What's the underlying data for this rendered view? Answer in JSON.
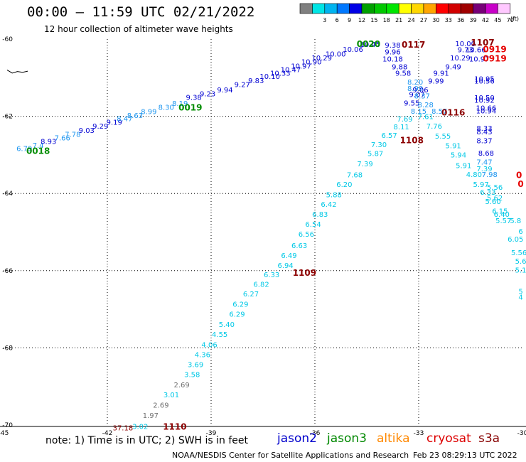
{
  "header": {
    "title": "00:00 – 11:59 UTC 02/21/2022",
    "subtitle": "12 hour collection of altimeter wave heights"
  },
  "color_scale": {
    "units": "(ft)",
    "bins": [
      {
        "label": "",
        "color": "#808080"
      },
      {
        "label": "3",
        "color": "#00e5e5"
      },
      {
        "label": "6",
        "color": "#00b4f0"
      },
      {
        "label": "9",
        "color": "#0078ff"
      },
      {
        "label": "12",
        "color": "#0000e6"
      },
      {
        "label": "15",
        "color": "#00a000"
      },
      {
        "label": "18",
        "color": "#00c800"
      },
      {
        "label": "21",
        "color": "#00e600"
      },
      {
        "label": "24",
        "color": "#ffff00"
      },
      {
        "label": "27",
        "color": "#ffd700"
      },
      {
        "label": "30",
        "color": "#ffa500"
      },
      {
        "label": "33",
        "color": "#ff0000"
      },
      {
        "label": "36",
        "color": "#d20000"
      },
      {
        "label": "39",
        "color": "#a00000"
      },
      {
        "label": "42",
        "color": "#780078"
      },
      {
        "label": "45",
        "color": "#c800c8"
      },
      {
        "label": "70",
        "color": "#ffc8ff"
      }
    ]
  },
  "footer": {
    "note": "note:  1) Time is in UTC;  2) SWH is in feet",
    "credit": "NOAA/NESDIS Center for Satellite Applications and Research",
    "run_date": "Feb 23 08:29:13 UTC 2022",
    "satellites": [
      {
        "name": "jason2",
        "color": "#0000cc"
      },
      {
        "name": "jason3",
        "color": "#008800"
      },
      {
        "name": "altika",
        "color": "#ff8800"
      },
      {
        "name": "cryosat",
        "color": "#dd0000"
      },
      {
        "name": "s3a",
        "color": "#880000"
      }
    ]
  },
  "chart_data": {
    "type": "scatter",
    "title": "00:00 – 11:59 UTC 02/21/2022",
    "subtitle": "12 hour collection of altimeter wave heights",
    "xlim": [
      -45,
      -30
    ],
    "ylim": [
      -70,
      -60
    ],
    "x_ticks": [
      -45,
      -42,
      -39,
      -36,
      -33,
      -30
    ],
    "y_ticks": [
      -60,
      -62,
      -64,
      -66,
      -68,
      -70
    ],
    "x_tick_labels": [
      "-45",
      "-42",
      "-39",
      "-36",
      "-33",
      "-30"
    ],
    "y_tick_labels": [
      "-60",
      "-62",
      "-64",
      "-66",
      "-68",
      "-70"
    ],
    "grid": true,
    "colors": {
      "gray": "#707070",
      "cyan": "#00c8e6",
      "lightblue": "#1e96f0",
      "blue": "#0000d2",
      "green": "#008c00",
      "darkred": "#8c0000",
      "red": "#e60000"
    },
    "coast": [
      [
        -44.9,
        -60.8
      ],
      [
        -44.75,
        -60.88
      ],
      [
        -44.6,
        -60.84
      ],
      [
        -44.45,
        -60.86
      ],
      [
        -44.3,
        -60.83
      ]
    ],
    "points": [
      {
        "x": -44.4,
        "y": -62.9,
        "label": "6.79",
        "color": "lightblue"
      },
      {
        "x": -44.0,
        "y": -62.82,
        "label": "7.4",
        "color": "lightblue"
      },
      {
        "x": -43.7,
        "y": -62.72,
        "label": "8.93",
        "color": "blue"
      },
      {
        "x": -43.3,
        "y": -62.62,
        "label": "7.66",
        "color": "lightblue"
      },
      {
        "x": -43.0,
        "y": -62.53,
        "label": "7.78",
        "color": "lightblue"
      },
      {
        "x": -42.6,
        "y": -62.43,
        "label": "9.03",
        "color": "blue"
      },
      {
        "x": -42.2,
        "y": -62.32,
        "label": "9.29",
        "color": "blue"
      },
      {
        "x": -41.8,
        "y": -62.22,
        "label": "9.19",
        "color": "blue"
      },
      {
        "x": -41.5,
        "y": -62.13,
        "label": "8.47",
        "color": "lightblue"
      },
      {
        "x": -41.2,
        "y": -62.04,
        "label": "8.63",
        "color": "lightblue"
      },
      {
        "x": -40.8,
        "y": -61.94,
        "label": "8.99",
        "color": "lightblue"
      },
      {
        "x": -40.3,
        "y": -61.83,
        "label": "8.30",
        "color": "lightblue"
      },
      {
        "x": -39.9,
        "y": -61.73,
        "label": "8.19",
        "color": "lightblue"
      },
      {
        "x": -39.5,
        "y": -61.57,
        "label": "9.38",
        "color": "blue"
      },
      {
        "x": -39.1,
        "y": -61.48,
        "label": "9.23",
        "color": "blue"
      },
      {
        "x": -38.6,
        "y": -61.38,
        "label": "9.94",
        "color": "blue"
      },
      {
        "x": -38.1,
        "y": -61.24,
        "label": "9.27",
        "color": "blue"
      },
      {
        "x": -37.7,
        "y": -61.14,
        "label": "9.83",
        "color": "blue"
      },
      {
        "x": -37.3,
        "y": -61.03,
        "label": "10.10",
        "color": "blue"
      },
      {
        "x": -37.0,
        "y": -60.95,
        "label": "10.33",
        "color": "blue"
      },
      {
        "x": -36.7,
        "y": -60.86,
        "label": "10.47",
        "color": "blue"
      },
      {
        "x": -36.4,
        "y": -60.76,
        "label": "10.97",
        "color": "blue"
      },
      {
        "x": -36.1,
        "y": -60.65,
        "label": "10.90",
        "color": "blue"
      },
      {
        "x": -35.8,
        "y": -60.55,
        "label": "10.29",
        "color": "blue"
      },
      {
        "x": -35.4,
        "y": -60.45,
        "label": "10.00",
        "color": "blue"
      },
      {
        "x": -34.9,
        "y": -60.33,
        "label": "10.06",
        "color": "blue"
      },
      {
        "x": -34.4,
        "y": -60.2,
        "label": "10.45",
        "color": "blue"
      },
      {
        "x": -33.75,
        "y": -60.22,
        "label": "9.38",
        "color": "blue"
      },
      {
        "x": -33.75,
        "y": -60.4,
        "label": "9.96",
        "color": "blue"
      },
      {
        "x": -33.75,
        "y": -60.58,
        "label": "10.18",
        "color": "blue"
      },
      {
        "x": -33.55,
        "y": -60.78,
        "label": "9.88",
        "color": "blue"
      },
      {
        "x": -33.45,
        "y": -60.95,
        "label": "9.58",
        "color": "blue"
      },
      {
        "x": -33.1,
        "y": -61.18,
        "label": "8.20",
        "color": "lightblue"
      },
      {
        "x": -33.1,
        "y": -61.34,
        "label": "8.99",
        "color": "lightblue"
      },
      {
        "x": -32.95,
        "y": -61.38,
        "label": "9.06",
        "color": "blue"
      },
      {
        "x": -33.05,
        "y": -61.5,
        "label": "9.07",
        "color": "blue"
      },
      {
        "x": -32.9,
        "y": -61.54,
        "label": "8.37",
        "color": "lightblue"
      },
      {
        "x": -33.2,
        "y": -61.72,
        "label": "9.55",
        "color": "blue"
      },
      {
        "x": -32.8,
        "y": -61.77,
        "label": "8.28",
        "color": "lightblue"
      },
      {
        "x": -33.0,
        "y": -61.93,
        "label": "8.15",
        "color": "lightblue"
      },
      {
        "x": -32.4,
        "y": -61.93,
        "label": "8.57",
        "color": "lightblue"
      },
      {
        "x": -32.5,
        "y": -61.15,
        "label": "9.99",
        "color": "blue"
      },
      {
        "x": -32.35,
        "y": -60.95,
        "label": "9.91",
        "color": "blue"
      },
      {
        "x": -32.0,
        "y": -60.78,
        "label": "9.49",
        "color": "blue"
      },
      {
        "x": -31.8,
        "y": -60.55,
        "label": "10.29",
        "color": "blue"
      },
      {
        "x": -31.65,
        "y": -60.34,
        "label": "9.73",
        "color": "blue"
      },
      {
        "x": -31.65,
        "y": -60.18,
        "label": "10.00",
        "color": "blue"
      },
      {
        "x": -31.35,
        "y": -60.34,
        "label": "10.66",
        "color": "blue"
      },
      {
        "x": -31.25,
        "y": -60.58,
        "label": "10.97",
        "color": "blue"
      },
      {
        "x": -31.1,
        "y": -61.1,
        "label": "10.95",
        "color": "blue"
      },
      {
        "x": -31.1,
        "y": -61.15,
        "label": "10.56",
        "color": "blue"
      },
      {
        "x": -31.1,
        "y": -61.58,
        "label": "10.50",
        "color": "blue"
      },
      {
        "x": -31.1,
        "y": -61.65,
        "label": "10.92",
        "color": "blue"
      },
      {
        "x": -31.05,
        "y": -61.85,
        "label": "10.66",
        "color": "blue"
      },
      {
        "x": -31.05,
        "y": -61.92,
        "label": "10.94",
        "color": "blue"
      },
      {
        "x": -33.4,
        "y": -62.14,
        "label": "7.69",
        "color": "cyan"
      },
      {
        "x": -33.5,
        "y": -62.34,
        "label": "8.11",
        "color": "cyan"
      },
      {
        "x": -33.85,
        "y": -62.56,
        "label": "6.57",
        "color": "cyan"
      },
      {
        "x": -34.15,
        "y": -62.8,
        "label": "7.30",
        "color": "cyan"
      },
      {
        "x": -34.25,
        "y": -63.03,
        "label": "5.87",
        "color": "cyan"
      },
      {
        "x": -34.55,
        "y": -63.3,
        "label": "7.39",
        "color": "cyan"
      },
      {
        "x": -34.85,
        "y": -63.58,
        "label": "7.68",
        "color": "cyan"
      },
      {
        "x": -35.15,
        "y": -63.83,
        "label": "6.20",
        "color": "cyan"
      },
      {
        "x": -35.45,
        "y": -64.1,
        "label": "5.88",
        "color": "cyan"
      },
      {
        "x": -35.6,
        "y": -64.35,
        "label": "6.42",
        "color": "cyan"
      },
      {
        "x": -35.85,
        "y": -64.6,
        "label": "6.83",
        "color": "cyan"
      },
      {
        "x": -36.05,
        "y": -64.86,
        "label": "6.54",
        "color": "cyan"
      },
      {
        "x": -36.25,
        "y": -65.12,
        "label": "6.56",
        "color": "cyan"
      },
      {
        "x": -36.45,
        "y": -65.41,
        "label": "6.63",
        "color": "cyan"
      },
      {
        "x": -36.75,
        "y": -65.67,
        "label": "6.49",
        "color": "cyan"
      },
      {
        "x": -36.85,
        "y": -65.93,
        "label": "6.94",
        "color": "cyan"
      },
      {
        "x": -37.25,
        "y": -66.17,
        "label": "6.33",
        "color": "cyan"
      },
      {
        "x": -37.55,
        "y": -66.42,
        "label": "6.82",
        "color": "cyan"
      },
      {
        "x": -37.85,
        "y": -66.67,
        "label": "6.27",
        "color": "cyan"
      },
      {
        "x": -38.15,
        "y": -66.93,
        "label": "6.29",
        "color": "cyan"
      },
      {
        "x": -38.25,
        "y": -67.19,
        "label": "6.29",
        "color": "cyan"
      },
      {
        "x": -38.55,
        "y": -67.46,
        "label": "5.40",
        "color": "cyan"
      },
      {
        "x": -38.75,
        "y": -67.72,
        "label": "4.55",
        "color": "cyan"
      },
      {
        "x": -39.05,
        "y": -67.98,
        "label": "4.06",
        "color": "cyan"
      },
      {
        "x": -39.25,
        "y": -68.24,
        "label": "4.36",
        "color": "cyan"
      },
      {
        "x": -39.45,
        "y": -68.5,
        "label": "3.69",
        "color": "cyan"
      },
      {
        "x": -39.55,
        "y": -68.76,
        "label": "3.58",
        "color": "cyan"
      },
      {
        "x": -39.85,
        "y": -69.02,
        "label": "2.69",
        "color": "gray"
      },
      {
        "x": -40.15,
        "y": -69.28,
        "label": "3.01",
        "color": "cyan"
      },
      {
        "x": -40.45,
        "y": -69.55,
        "label": "2.69",
        "color": "gray"
      },
      {
        "x": -40.75,
        "y": -69.82,
        "label": "1.97",
        "color": "gray"
      },
      {
        "x": -41.05,
        "y": -70.1,
        "label": "3.02",
        "color": "cyan"
      },
      {
        "x": -32.8,
        "y": -62.07,
        "label": "7.61",
        "color": "cyan"
      },
      {
        "x": -32.55,
        "y": -62.32,
        "label": "7.76",
        "color": "cyan"
      },
      {
        "x": -32.3,
        "y": -62.58,
        "label": "5.55",
        "color": "cyan"
      },
      {
        "x": -32.0,
        "y": -62.83,
        "label": "5.91",
        "color": "cyan"
      },
      {
        "x": -31.85,
        "y": -63.07,
        "label": "5.94",
        "color": "cyan"
      },
      {
        "x": -31.7,
        "y": -63.34,
        "label": "5.91",
        "color": "cyan"
      },
      {
        "x": -31.4,
        "y": -63.57,
        "label": "4.80",
        "color": "cyan"
      },
      {
        "x": -31.2,
        "y": -63.83,
        "label": "5.97",
        "color": "cyan"
      },
      {
        "x": -31.1,
        "y": -63.43,
        "label": "7.39",
        "color": "cyan"
      },
      {
        "x": -30.95,
        "y": -63.57,
        "label": "7.98",
        "color": "lightblue"
      },
      {
        "x": -31.1,
        "y": -63.25,
        "label": "7.47",
        "color": "lightblue"
      },
      {
        "x": -31.05,
        "y": -63.02,
        "label": "8.68",
        "color": "blue"
      },
      {
        "x": -31.1,
        "y": -62.7,
        "label": "8.37",
        "color": "blue"
      },
      {
        "x": -31.1,
        "y": -62.47,
        "label": "8.43",
        "color": "blue"
      },
      {
        "x": -31.1,
        "y": -62.38,
        "label": "8.33",
        "color": "blue"
      },
      {
        "x": -30.8,
        "y": -63.9,
        "label": "5.56",
        "color": "cyan"
      },
      {
        "x": -31.0,
        "y": -64.03,
        "label": "6.33",
        "color": "cyan"
      },
      {
        "x": -30.8,
        "y": -64.18,
        "label": "5.62",
        "color": "cyan"
      },
      {
        "x": -30.85,
        "y": -64.27,
        "label": "5.60",
        "color": "cyan"
      },
      {
        "x": -30.65,
        "y": -64.52,
        "label": "6.15",
        "color": "cyan"
      },
      {
        "x": -30.6,
        "y": -64.6,
        "label": "6.40",
        "color": "cyan"
      },
      {
        "x": -30.55,
        "y": -64.77,
        "label": "5.57",
        "color": "cyan"
      },
      {
        "x": -30.2,
        "y": -64.77,
        "label": "5.8",
        "color": "cyan"
      },
      {
        "x": -30.05,
        "y": -65.05,
        "label": "6",
        "color": "cyan"
      },
      {
        "x": -30.2,
        "y": -65.25,
        "label": "6.05",
        "color": "cyan"
      },
      {
        "x": -30.1,
        "y": -65.6,
        "label": "5.56",
        "color": "cyan"
      },
      {
        "x": -30.05,
        "y": -65.82,
        "label": "5.6",
        "color": "cyan"
      },
      {
        "x": -30.05,
        "y": -66.05,
        "label": "5.1",
        "color": "cyan"
      },
      {
        "x": -30.05,
        "y": -66.75,
        "label": "4",
        "color": "cyan"
      },
      {
        "x": -30.05,
        "y": -66.6,
        "label": "5",
        "color": "cyan"
      }
    ],
    "time_labels": [
      {
        "x": -44.0,
        "y": -62.97,
        "label": "0018",
        "color": "green"
      },
      {
        "x": -39.6,
        "y": -61.85,
        "label": "0019",
        "color": "green"
      },
      {
        "x": -34.45,
        "y": -60.2,
        "label": "0020",
        "color": "green"
      },
      {
        "x": -33.15,
        "y": -60.22,
        "label": "0117",
        "color": "darkred"
      },
      {
        "x": -31.15,
        "y": -60.17,
        "label": "1107",
        "color": "darkred"
      },
      {
        "x": -30.8,
        "y": -60.34,
        "label": "0919",
        "color": "red"
      },
      {
        "x": -30.8,
        "y": -60.58,
        "label": "0919",
        "color": "red"
      },
      {
        "x": -32.0,
        "y": -61.98,
        "label": "0116",
        "color": "darkred"
      },
      {
        "x": -33.2,
        "y": -62.7,
        "label": "1108",
        "color": "darkred"
      },
      {
        "x": -36.3,
        "y": -66.13,
        "label": "1109",
        "color": "darkred"
      },
      {
        "x": -40.05,
        "y": -70.12,
        "label": "1110",
        "color": "darkred"
      },
      {
        "x": -30.1,
        "y": -63.6,
        "label": "0",
        "color": "red"
      },
      {
        "x": -30.05,
        "y": -63.83,
        "label": "0",
        "color": "red"
      }
    ],
    "extra_labels": [
      {
        "x": -41.55,
        "y": -70.14,
        "label": "37.18",
        "color": "darkred"
      }
    ]
  }
}
